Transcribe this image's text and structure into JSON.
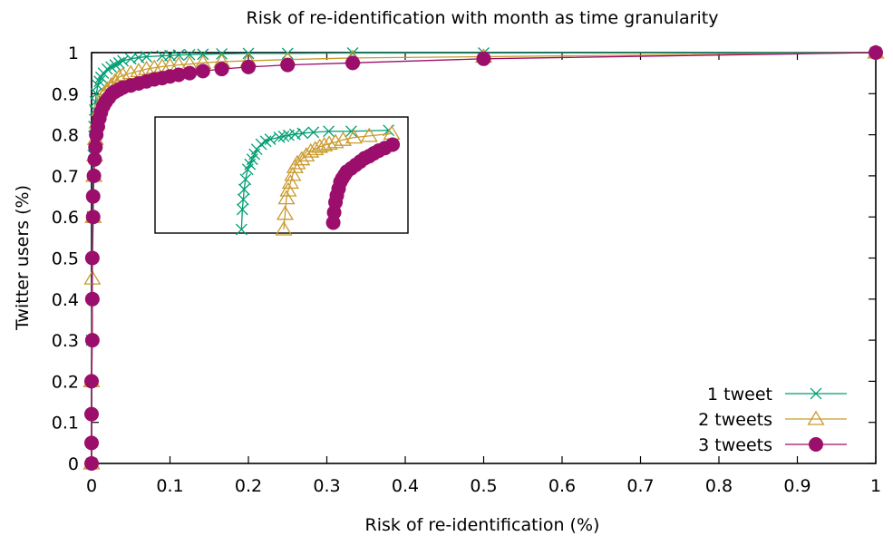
{
  "chart_data": {
    "type": "line",
    "title": "Risk of re-identification with month as time granularity",
    "xlabel": "Risk of re-identification (%)",
    "ylabel": "Twitter users (%)",
    "xlim": [
      0,
      1
    ],
    "ylim": [
      0,
      1
    ],
    "xticks": [
      "0",
      "0.1",
      "0.2",
      "0.3",
      "0.4",
      "0.5",
      "0.6",
      "0.7",
      "0.8",
      "0.9",
      "1"
    ],
    "yticks": [
      "0",
      "0.1",
      "0.2",
      "0.3",
      "0.4",
      "0.5",
      "0.6",
      "0.7",
      "0.8",
      "0.9",
      "1"
    ],
    "grid": false,
    "legend": "bottom-right",
    "series": [
      {
        "name": "1 tweet",
        "color": "#009e73",
        "marker": "cross",
        "x": [
          0.0,
          0.0,
          0.001,
          0.002,
          0.003,
          0.004,
          0.005,
          0.006,
          0.008,
          0.01,
          0.012,
          0.015,
          0.02,
          0.025,
          0.03,
          0.035,
          0.04,
          0.05,
          0.06,
          0.07,
          0.09,
          0.1,
          0.111,
          0.125,
          0.142,
          0.166,
          0.2,
          0.25,
          0.333,
          0.5,
          1.0
        ],
        "y": [
          0.0,
          0.3,
          0.6,
          0.75,
          0.82,
          0.86,
          0.88,
          0.9,
          0.92,
          0.93,
          0.94,
          0.95,
          0.96,
          0.965,
          0.97,
          0.975,
          0.98,
          0.985,
          0.988,
          0.99,
          0.992,
          0.993,
          0.994,
          0.995,
          0.996,
          0.997,
          0.998,
          0.998,
          0.999,
          0.999,
          1.0
        ]
      },
      {
        "name": "2 tweets",
        "color": "#c99a2e",
        "marker": "triangle",
        "x": [
          0.0,
          0.0,
          0.001,
          0.002,
          0.003,
          0.004,
          0.005,
          0.007,
          0.01,
          0.013,
          0.016,
          0.02,
          0.025,
          0.03,
          0.035,
          0.04,
          0.05,
          0.06,
          0.07,
          0.08,
          0.09,
          0.1,
          0.111,
          0.125,
          0.142,
          0.166,
          0.2,
          0.25,
          0.333,
          0.5,
          1.0
        ],
        "y": [
          0.0,
          0.2,
          0.45,
          0.6,
          0.7,
          0.75,
          0.79,
          0.83,
          0.86,
          0.88,
          0.9,
          0.91,
          0.92,
          0.93,
          0.94,
          0.945,
          0.95,
          0.955,
          0.96,
          0.963,
          0.966,
          0.968,
          0.97,
          0.972,
          0.975,
          0.978,
          0.98,
          0.983,
          0.987,
          0.99,
          1.0
        ]
      },
      {
        "name": "3 tweets",
        "color": "#9b0e6b",
        "marker": "circle",
        "x": [
          0.0,
          0.0,
          0.0,
          0.0,
          0.001,
          0.001,
          0.001,
          0.002,
          0.002,
          0.003,
          0.004,
          0.005,
          0.006,
          0.008,
          0.01,
          0.012,
          0.015,
          0.018,
          0.022,
          0.026,
          0.03,
          0.035,
          0.04,
          0.05,
          0.06,
          0.07,
          0.08,
          0.09,
          0.1,
          0.111,
          0.125,
          0.142,
          0.166,
          0.2,
          0.25,
          0.333,
          0.5,
          1.0
        ],
        "y": [
          0.0,
          0.05,
          0.12,
          0.2,
          0.3,
          0.4,
          0.5,
          0.6,
          0.65,
          0.7,
          0.74,
          0.77,
          0.8,
          0.82,
          0.84,
          0.855,
          0.87,
          0.88,
          0.89,
          0.9,
          0.905,
          0.91,
          0.915,
          0.92,
          0.925,
          0.93,
          0.935,
          0.938,
          0.942,
          0.946,
          0.95,
          0.955,
          0.96,
          0.965,
          0.97,
          0.975,
          0.985,
          1.0
        ]
      }
    ]
  }
}
